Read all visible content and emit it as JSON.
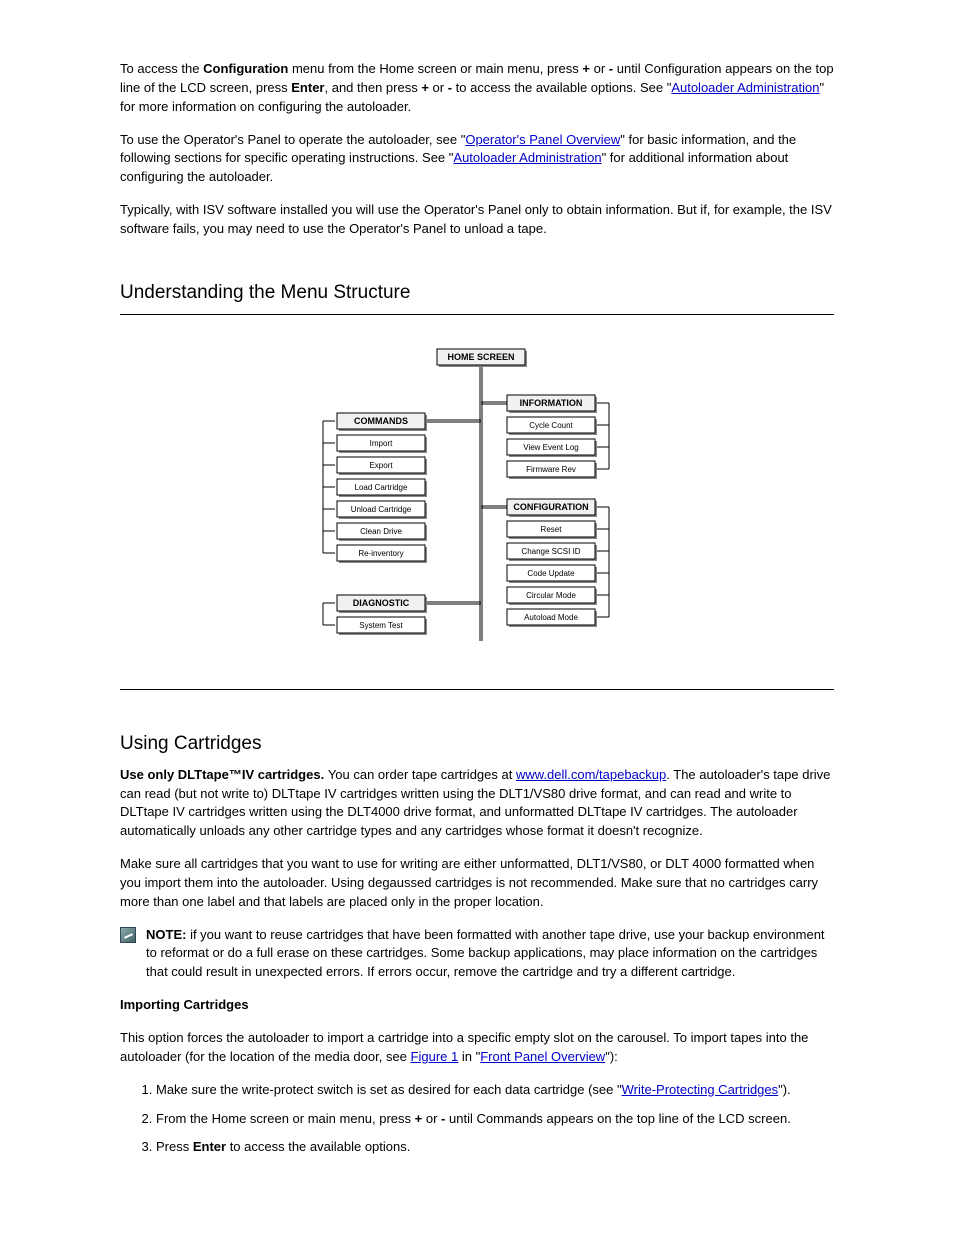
{
  "intro": {
    "para1_a": "To access the ",
    "para1_b_strong": "Configuration",
    "para1_c": " menu from the Home screen or main menu, press ",
    "para1_d_strong": "+",
    "para1_e": " or ",
    "para1_f_strong": "-",
    "para1_g": " until Configuration appears on the top line of the LCD screen, press ",
    "para1_h_strong": "Enter",
    "para1_i": ", and then press ",
    "para1_j_strong": "+",
    "para1_k": " or ",
    "para1_l_strong": "-",
    "para1_m": " to access the available options. See \"",
    "para1_link": "Autoloader Administration",
    "para1_n": "\" for more information on configuring the autoloader.",
    "para2_a": "To use the Operator's Panel to operate the autoloader, see \"",
    "para2_link": "Operator's Panel Overview",
    "para2_b": "\" for basic information, and the following sections for specific operating instructions. See \"",
    "para2_link2": "Autoloader Administration",
    "para2_c": "\" for additional information about configuring the autoloader.",
    "para3_a": "Typically, with ISV software installed you will use the Operator's Panel only to obtain information. But if, for example, the ISV software fails, you may need to use the Operator's Panel to unload a tape."
  },
  "menuSection": {
    "title": "Understanding the Menu Structure"
  },
  "diagram": {
    "root": "HOME SCREEN",
    "commands": {
      "header": "COMMANDS",
      "items": [
        "Import",
        "Export",
        "Load Cartridge",
        "Unload Cartridge",
        "Clean Drive",
        "Re-inventory"
      ]
    },
    "diagnostic": {
      "header": "DIAGNOSTIC",
      "items": [
        "System Test"
      ]
    },
    "information": {
      "header": "INFORMATION",
      "items": [
        "Cycle Count",
        "View Event Log",
        "Firmware Rev"
      ]
    },
    "configuration": {
      "header": "CONFIGURATION",
      "items": [
        "Reset",
        "Change SCSI ID",
        "Code Update",
        "Circular Mode",
        "Autoload Mode"
      ]
    },
    "colors": {
      "headerFill": "#f1f1f1",
      "itemFill": "#ffffff",
      "border": "#000000",
      "line": "#000000",
      "headerFont": 9,
      "itemFont": 8
    }
  },
  "cartridgeSection": {
    "title": "Using Cartridges",
    "para1_a": "Use only DLTtape™IV cartridges. ",
    "para1_b": "You can order tape cartridges at ",
    "para1_link": "www.dell.com/tapebackup",
    "para1_c": ". The autoloader's tape drive can read (but not write to) DLTtape IV cartridges written using the DLT1/VS80 drive format, and can read and write to DLTtape IV cartridges written using the DLT4000 drive format, and unformatted DLTtape IV cartridges. The autoloader automatically unloads any other cartridge types and any cartridges whose format it doesn't recognize.",
    "para2": "Make sure all cartridges that you want to use for writing are either unformatted, DLT1/VS80, or DLT 4000 formatted when you import them into the autoloader. Using degaussed cartridges is not recommended. Make sure that no cartridges carry more than one label and that labels are placed only in the proper location.",
    "note_strong": "NOTE: ",
    "note_body": "if you want to reuse cartridges that have been formatted with another tape drive, use your backup environment to reformat or do a full erase on these cartridges. Some backup applications, may place information on the cartridges that could result in unexpected errors. If errors occur, remove the cartridge and try a different cartridge."
  },
  "importSection": {
    "title": "Importing Cartridges",
    "para1_a": "This option forces the autoloader to import a cartridge into a specific empty slot on the carousel. To import tapes into the autoloader (for the location of the media door, see ",
    "para1_link1": "Figure 1",
    "para1_b": " in \"",
    "para1_link2": "Front Panel Overview",
    "para1_c": "\"):",
    "li1_a": "Make sure the write-protect switch is set as desired for each data cartridge (see \"",
    "li1_link": "Write-Protecting Cartridges",
    "li1_b": "\").",
    "li2_a": "From the Home screen or main menu, press ",
    "li2_b_strong": "+",
    "li2_c": " or ",
    "li2_d_strong": "-",
    "li2_e": " until Commands appears on the top line of the LCD screen.",
    "li3_a": "Press ",
    "li3_b_strong": "Enter",
    "li3_c": " to access the available options."
  }
}
